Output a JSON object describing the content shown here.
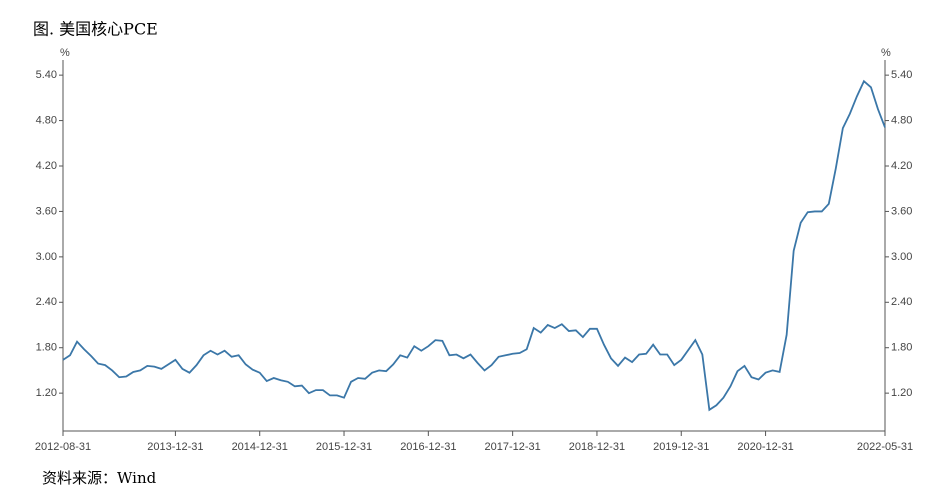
{
  "chart_data": {
    "type": "line",
    "title": "图. 美国核心PCE",
    "source": "资料来源：Wind",
    "y_unit": "%",
    "y2_unit": "%",
    "categories": [
      "2012-08-31",
      null,
      null,
      null,
      null,
      null,
      null,
      null,
      null,
      null,
      null,
      null,
      null,
      null,
      null,
      null,
      "2013-12-31",
      null,
      null,
      null,
      null,
      null,
      null,
      null,
      null,
      null,
      null,
      null,
      "2014-12-31",
      null,
      null,
      null,
      null,
      null,
      null,
      null,
      null,
      null,
      null,
      null,
      "2015-12-31",
      null,
      null,
      null,
      null,
      null,
      null,
      null,
      null,
      null,
      null,
      null,
      "2016-12-31",
      null,
      null,
      null,
      null,
      null,
      null,
      null,
      null,
      null,
      null,
      null,
      "2017-12-31",
      null,
      null,
      null,
      null,
      null,
      null,
      null,
      null,
      null,
      null,
      null,
      "2018-12-31",
      null,
      null,
      null,
      null,
      null,
      null,
      null,
      null,
      null,
      null,
      null,
      "2019-12-31",
      null,
      null,
      null,
      null,
      null,
      null,
      null,
      null,
      null,
      null,
      null,
      "2020-12-31",
      null,
      null,
      null,
      null,
      null,
      null,
      null,
      null,
      null,
      null,
      null,
      null,
      null,
      null,
      null,
      null,
      "2022-05-31"
    ],
    "series": [
      {
        "name": "美国核心PCE",
        "color": "#3b77a8",
        "values": [
          1.64,
          1.7,
          1.88,
          1.78,
          1.69,
          1.59,
          1.57,
          1.5,
          1.41,
          1.42,
          1.48,
          1.5,
          1.56,
          1.55,
          1.52,
          1.58,
          1.64,
          1.52,
          1.47,
          1.57,
          1.7,
          1.76,
          1.71,
          1.76,
          1.68,
          1.7,
          1.58,
          1.51,
          1.47,
          1.36,
          1.4,
          1.37,
          1.35,
          1.29,
          1.3,
          1.2,
          1.24,
          1.24,
          1.17,
          1.17,
          1.14,
          1.35,
          1.4,
          1.39,
          1.47,
          1.5,
          1.49,
          1.58,
          1.7,
          1.67,
          1.82,
          1.76,
          1.82,
          1.9,
          1.89,
          1.7,
          1.71,
          1.66,
          1.71,
          1.6,
          1.5,
          1.57,
          1.68,
          1.7,
          1.72,
          1.73,
          1.78,
          2.06,
          2.0,
          2.1,
          2.06,
          2.11,
          2.02,
          2.03,
          1.94,
          2.05,
          2.05,
          1.84,
          1.66,
          1.56,
          1.67,
          1.61,
          1.71,
          1.72,
          1.84,
          1.71,
          1.71,
          1.57,
          1.64,
          1.77,
          1.9,
          1.71,
          0.98,
          1.04,
          1.14,
          1.29,
          1.49,
          1.56,
          1.41,
          1.38,
          1.47,
          1.5,
          1.48,
          1.97,
          3.08,
          3.45,
          3.59,
          3.6,
          3.6,
          3.7,
          4.17,
          4.7,
          4.89,
          5.12,
          5.32,
          5.24,
          4.95,
          4.71
        ]
      }
    ],
    "ylim": [
      0.7,
      5.6
    ],
    "yticks": [
      {
        "value": 1.2,
        "label": "1.20"
      },
      {
        "value": 1.8,
        "label": "1.80"
      },
      {
        "value": 2.4,
        "label": "2.40"
      },
      {
        "value": 3.0,
        "label": "3.00"
      },
      {
        "value": 3.6,
        "label": "3.60"
      },
      {
        "value": 4.2,
        "label": "4.20"
      },
      {
        "value": 4.8,
        "label": "4.80"
      },
      {
        "value": 5.4,
        "label": "5.40"
      }
    ],
    "y2lim": [
      0.7,
      5.6
    ],
    "y2ticks": [
      {
        "value": 1.2,
        "label": "1.20"
      },
      {
        "value": 1.8,
        "label": "1.80"
      },
      {
        "value": 2.4,
        "label": "2.40"
      },
      {
        "value": 3.0,
        "label": "3.00"
      },
      {
        "value": 3.6,
        "label": "3.60"
      },
      {
        "value": 4.2,
        "label": "4.20"
      },
      {
        "value": 4.8,
        "label": "4.80"
      },
      {
        "value": 5.4,
        "label": "5.40"
      }
    ]
  }
}
